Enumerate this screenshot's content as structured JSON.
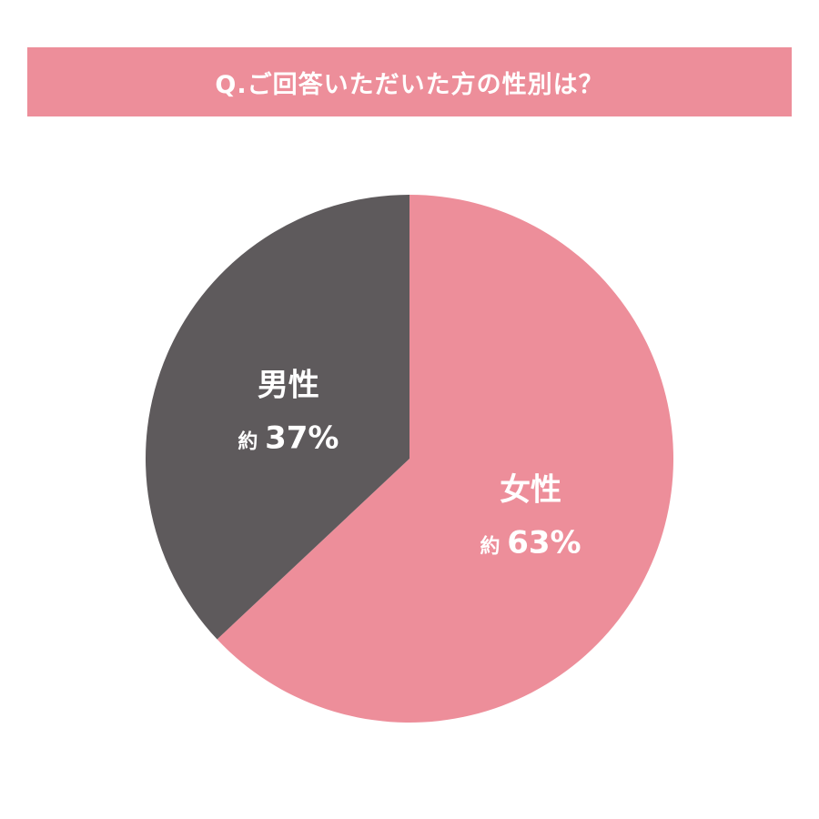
{
  "chart_data": {
    "type": "pie",
    "title": "Q.ご回答いただいた方の性別は？",
    "start": "top",
    "direction": "clockwise",
    "slices": [
      {
        "name": "女性",
        "prefix": "約",
        "value": 63,
        "label": "63%",
        "color": "#ed8e9a"
      },
      {
        "name": "男性",
        "prefix": "約",
        "value": 37,
        "label": "37%",
        "color": "#5e5a5c"
      }
    ]
  },
  "colors": {
    "title_bg": "#ed8e9a",
    "title_text": "#ffffff"
  }
}
